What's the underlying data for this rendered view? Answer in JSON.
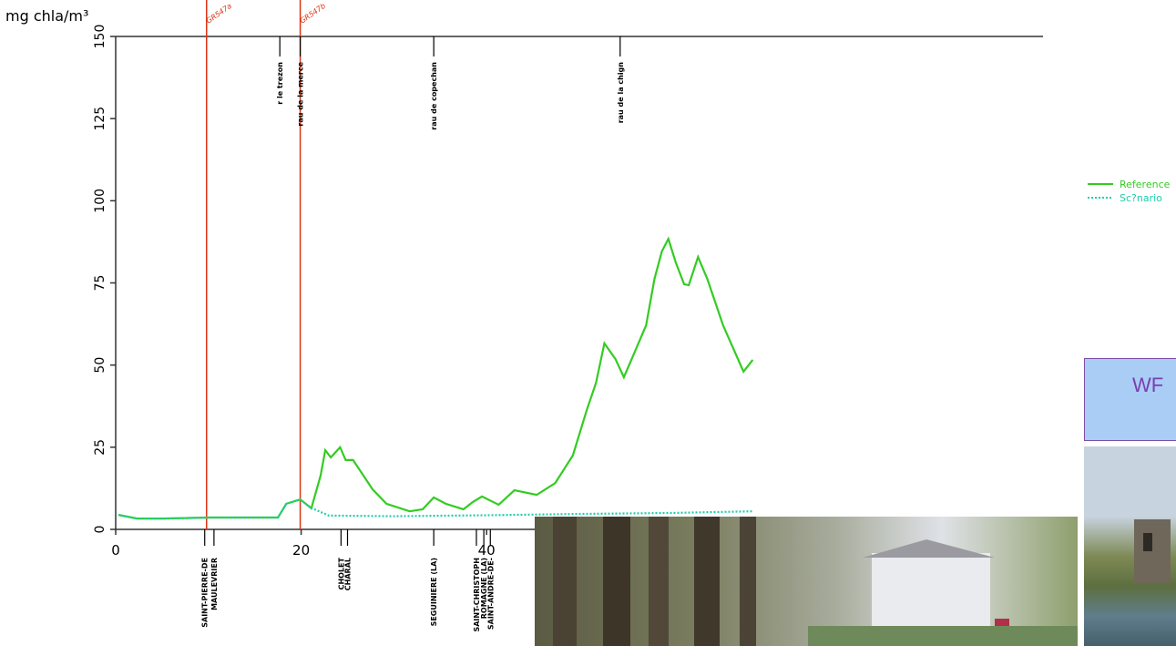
{
  "chart_data": {
    "type": "line",
    "y_label": "mg chla/m³",
    "xlim": [
      0,
      100
    ],
    "xticks": [
      0,
      20,
      40
    ],
    "ylim": [
      0,
      150
    ],
    "yticks": [
      0,
      25,
      50,
      75,
      100,
      125,
      150
    ],
    "series": [
      {
        "name": "Reference",
        "color": "#33cc22",
        "style": "solid",
        "x": [
          0.3,
          2.3,
          5.2,
          10.1,
          17.5,
          18.4,
          19.9,
          21.1,
          22.1,
          22.6,
          23.2,
          24.2,
          24.8,
          25.6,
          27.7,
          29.2,
          31.7,
          33.1,
          34.3,
          35.6,
          37.5,
          38.5,
          39.5,
          41.3,
          43,
          45.4,
          47.4,
          49.3,
          50.8,
          51.8,
          52.7,
          53.9,
          54.8,
          55.9,
          57.2,
          58.1,
          58.9,
          59.6,
          60.4,
          61.3,
          61.8,
          62.8,
          63.8,
          65.5,
          67.7,
          68.7
        ],
        "values": [
          4.4,
          3.3,
          3.3,
          3.6,
          3.6,
          7.8,
          9.1,
          6.4,
          16.4,
          24.1,
          21.9,
          25,
          21.1,
          21.1,
          12.2,
          7.8,
          5.5,
          6.1,
          9.7,
          7.8,
          6.1,
          8.3,
          10,
          7.5,
          11.9,
          10.5,
          14.1,
          22.5,
          36.3,
          44.6,
          56.6,
          51.8,
          46.3,
          53.5,
          62.1,
          76.2,
          84.6,
          88.4,
          81.2,
          74.6,
          74.3,
          82.9,
          76.2,
          62.1,
          48,
          51.6
        ]
      },
      {
        "name": "Sc?nario",
        "color": "#22ccaa",
        "style": "dotted",
        "x": [
          0.3,
          2.3,
          5.2,
          10.1,
          17.5,
          18.4,
          19.9,
          21.1,
          23,
          30,
          40,
          50,
          60,
          68.7
        ],
        "values": [
          4.4,
          3.3,
          3.3,
          3.6,
          3.6,
          7.8,
          9.1,
          6.5,
          4.2,
          4,
          4.3,
          4.7,
          5,
          5.5
        ]
      }
    ],
    "markers": [
      {
        "label": "GR547a",
        "x": 9.8,
        "color": "#dd3311"
      },
      {
        "label": "GR547b",
        "x": 19.9,
        "color": "#dd3311"
      }
    ],
    "tributaries": [
      {
        "label": "r le trezon",
        "x": 17.7
      },
      {
        "label": "rau de la merce",
        "x": 19.9
      },
      {
        "label": "rau de copechan",
        "x": 34.3
      },
      {
        "label": "rau de la chign",
        "x": 54.4
      }
    ],
    "towns": [
      {
        "label": "SAINT-PIERRE-DE",
        "x": 9.6
      },
      {
        "label": "MAULEVRIER",
        "x": 10.6
      },
      {
        "label": "CHOLET",
        "x": 24.3
      },
      {
        "label": "CHARAL",
        "x": 25
      },
      {
        "label": "SEGUINIERE (LA)",
        "x": 34.3
      },
      {
        "label": "SAINT-CHRISTOPH",
        "x": 38.9
      },
      {
        "label": "ROMAGNE (LA)",
        "x": 39.7
      },
      {
        "label": "SAINT-ANDRE-DE-",
        "x": 40.4
      }
    ]
  },
  "panel": {
    "label": "WF"
  }
}
